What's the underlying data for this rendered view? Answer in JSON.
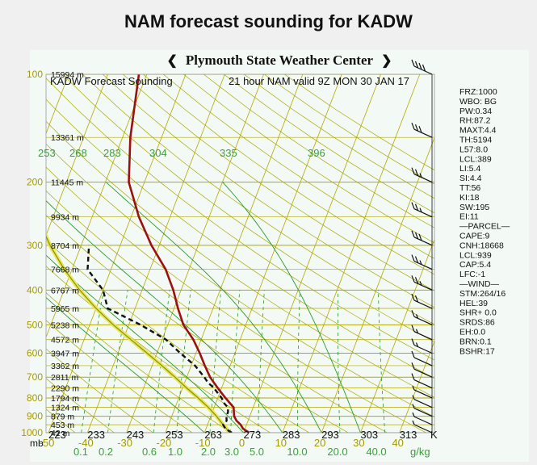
{
  "page": {
    "title": "NAM forecast sounding for KADW"
  },
  "banner": {
    "text": "Plymouth State Weather Center",
    "left_glyph": "❮",
    "right_glyph": "❯"
  },
  "chart_data": {
    "type": "line",
    "subtype": "skew-T log-P sounding",
    "header_left": "KADW Forecast Sounding",
    "header_right": "21 hour  NAM valid 9Z MON 30 JAN 17",
    "pressure_ticks": [
      "100",
      "200",
      "300",
      "400",
      "500",
      "600",
      "700",
      "800",
      "900",
      "1000"
    ],
    "pressure_unit": "mb",
    "height_labels": [
      {
        "p": 100,
        "text": "15994 m"
      },
      {
        "p": 150,
        "text": "13361 m"
      },
      {
        "p": 200,
        "text": "11445 m"
      },
      {
        "p": 250,
        "text": "9934 m"
      },
      {
        "p": 300,
        "text": "8704 m"
      },
      {
        "p": 350,
        "text": "7668 m"
      },
      {
        "p": 400,
        "text": "6767 m"
      },
      {
        "p": 450,
        "text": "5965 m"
      },
      {
        "p": 500,
        "text": "5238 m"
      },
      {
        "p": 550,
        "text": "4572 m"
      },
      {
        "p": 600,
        "text": "3947 m"
      },
      {
        "p": 650,
        "text": "3362 m"
      },
      {
        "p": 700,
        "text": "2811 m"
      },
      {
        "p": 750,
        "text": "2290 m"
      },
      {
        "p": 800,
        "text": "1794 m"
      },
      {
        "p": 850,
        "text": "1324 m"
      },
      {
        "p": 900,
        "text": "879 m"
      },
      {
        "p": 950,
        "text": "453 m"
      },
      {
        "p": 1000,
        "text": "42 m"
      }
    ],
    "temp_ticks_c": [
      "-50",
      "-40",
      "-30",
      "-20",
      "-10",
      "0",
      "10",
      "20",
      "30",
      "40"
    ],
    "kelvin_labels": [
      "223",
      "233",
      "243",
      "253",
      "263",
      "273",
      "283",
      "293",
      "303",
      "313"
    ],
    "theta_labels": [
      "253",
      "268",
      "283",
      "304",
      "335",
      "396"
    ],
    "mixing_ratio_labels": [
      "0.1",
      "0.2",
      "0.6",
      "1.0",
      "2.0",
      "3.0",
      "5.0",
      "10.0",
      "20.0",
      "40.0"
    ],
    "mixing_ratio_unit": "g/kg",
    "x_axis_right_label": "K",
    "temperature": [
      [
        1000,
        1.5
      ],
      [
        975,
        -0.5
      ],
      [
        950,
        -1.5
      ],
      [
        925,
        -3
      ],
      [
        900,
        -4
      ],
      [
        875,
        -4.5
      ],
      [
        850,
        -5
      ],
      [
        825,
        -6.5
      ],
      [
        800,
        -8
      ],
      [
        775,
        -9.5
      ],
      [
        750,
        -11
      ],
      [
        725,
        -12.5
      ],
      [
        700,
        -14
      ],
      [
        650,
        -16.5
      ],
      [
        600,
        -19
      ],
      [
        550,
        -22
      ],
      [
        500,
        -26
      ],
      [
        450,
        -29
      ],
      [
        400,
        -32
      ],
      [
        350,
        -36
      ],
      [
        300,
        -42
      ],
      [
        250,
        -48
      ],
      [
        200,
        -54
      ],
      [
        150,
        -58
      ],
      [
        100,
        -62
      ]
    ],
    "dewpoint": [
      [
        1000,
        -3
      ],
      [
        975,
        -5
      ],
      [
        950,
        -6
      ],
      [
        925,
        -5.5
      ],
      [
        900,
        -6
      ],
      [
        875,
        -6
      ],
      [
        850,
        -6.5
      ],
      [
        825,
        -8
      ],
      [
        800,
        -9
      ],
      [
        775,
        -10.5
      ],
      [
        750,
        -12
      ],
      [
        725,
        -14
      ],
      [
        700,
        -15.5
      ],
      [
        650,
        -19
      ],
      [
        600,
        -24
      ],
      [
        550,
        -29
      ],
      [
        500,
        -37
      ],
      [
        450,
        -47
      ],
      [
        400,
        -50
      ],
      [
        350,
        -56
      ],
      [
        300,
        -58
      ]
    ],
    "parcel": [
      [
        1000,
        -3.5
      ],
      [
        950,
        -6
      ],
      [
        900,
        -8.5
      ],
      [
        850,
        -11.5
      ],
      [
        800,
        -15
      ],
      [
        750,
        -19
      ],
      [
        700,
        -23
      ],
      [
        650,
        -27.5
      ],
      [
        600,
        -32.5
      ],
      [
        550,
        -38
      ],
      [
        500,
        -44
      ],
      [
        450,
        -50
      ],
      [
        400,
        -56
      ],
      [
        350,
        -62
      ],
      [
        300,
        -68
      ],
      [
        250,
        -74
      ],
      [
        200,
        -80
      ],
      [
        150,
        -84
      ],
      [
        100,
        -88
      ]
    ],
    "winds": [
      {
        "p": 100,
        "spd": 40
      },
      {
        "p": 150,
        "spd": 30
      },
      {
        "p": 200,
        "spd": 25
      },
      {
        "p": 250,
        "spd": 25
      },
      {
        "p": 300,
        "spd": 30
      },
      {
        "p": 350,
        "spd": 25
      },
      {
        "p": 400,
        "spd": 25
      },
      {
        "p": 450,
        "spd": 20
      },
      {
        "p": 500,
        "spd": 15
      },
      {
        "p": 550,
        "spd": 15
      },
      {
        "p": 600,
        "spd": 15
      },
      {
        "p": 650,
        "spd": 10
      },
      {
        "p": 700,
        "spd": 10
      },
      {
        "p": 750,
        "spd": 10
      },
      {
        "p": 800,
        "spd": 5
      },
      {
        "p": 850,
        "spd": 5
      },
      {
        "p": 900,
        "spd": 5
      },
      {
        "p": 950,
        "spd": 5
      },
      {
        "p": 1000,
        "spd": 5
      }
    ],
    "colors": {
      "temperature": "#9b1010",
      "dewpoint": "#111111",
      "parcel_edge": "#e7e75a",
      "parcel_core": "#8c8c10",
      "isotherm": "#b3a800",
      "dry_adiabat": "#a8a800",
      "moist_adiabat": "#2a9a2a",
      "mixing_ratio": "#2a9a2a",
      "isobar": "#b3a800"
    }
  },
  "indices": [
    "FRZ:1000",
    "WBO: BG",
    "PW:0.34",
    "RH:87.2",
    "MAXT:4.4",
    "TH:5194",
    "L57:8.0",
    "LCL:389",
    "LI:5.4",
    "SI:4.4",
    "TT:56",
    "KI:18",
    "SW:195",
    "EI:11",
    "—PARCEL—",
    "CAPE:9",
    "CNH:18668",
    "LCL:939",
    "CAP:5.4",
    "LFC:-1",
    "—WIND—",
    "STM:264/16",
    "HEL:39",
    "SHR+ 0.0",
    "SRDS:86",
    "EH:0.0",
    "BRN:0.1",
    "BSHR:17"
  ]
}
